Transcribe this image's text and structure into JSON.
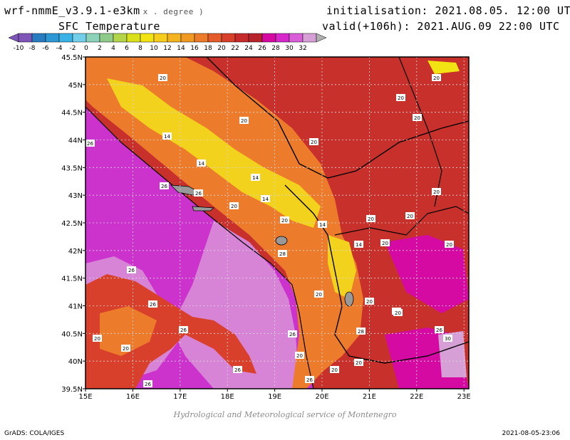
{
  "header": {
    "model": "wrf-nmmE_v3.9.1-e3km",
    "units": "x . degree )",
    "variable": "SFC Temperature",
    "init": "initialisation: 2021.08.05. 12:00 UTC",
    "valid": "valid(+106h): 2021.AUG.09 22:00 UTC"
  },
  "legend": {
    "ticks": [
      "-10",
      "-8",
      "-6",
      "-4",
      "-2",
      "0",
      "2",
      "4",
      "6",
      "8",
      "10",
      "12",
      "14",
      "16",
      "18",
      "20",
      "22",
      "24",
      "26",
      "28",
      "30",
      "32"
    ],
    "colors": [
      "#7e56b8",
      "#2a7cc1",
      "#2e98d4",
      "#39b2e6",
      "#73cfe9",
      "#8bd2b9",
      "#8fca8b",
      "#b4d54a",
      "#d9e11c",
      "#f2e412",
      "#f6cc1d",
      "#f4b41f",
      "#f09a24",
      "#ec7c2b",
      "#e45c2b",
      "#d8402c",
      "#c72a2b",
      "#b8242b",
      "#d40aa2",
      "#d628cb",
      "#d95fd8",
      "#d6a0d6"
    ]
  },
  "map": {
    "lat_labels": [
      "45.5N",
      "45N",
      "44.5N",
      "44N",
      "43.5N",
      "43N",
      "42.5N",
      "42N",
      "41.5N",
      "41N",
      "40.5N",
      "40N",
      "39.5N"
    ],
    "lon_labels": [
      "15E",
      "16E",
      "17E",
      "18E",
      "19E",
      "20E",
      "21E",
      "22E",
      "23E"
    ],
    "contour_labels": [
      "20",
      "20",
      "20",
      "20",
      "20",
      "20",
      "14",
      "14",
      "14",
      "14",
      "14",
      "26",
      "26",
      "26",
      "26",
      "28",
      "20",
      "20",
      "20",
      "20",
      "20",
      "20",
      "20",
      "20",
      "14",
      "20",
      "28",
      "26",
      "26",
      "20",
      "20",
      "26",
      "26",
      "26",
      "26",
      "26",
      "20",
      "20",
      "20",
      "20",
      "20",
      "30"
    ]
  },
  "footer": {
    "credit": "Hydrological and Meteorological service of Montenegro",
    "software": "GrADS: COLA/IGES",
    "timestamp": "2021-08-05-23:06"
  },
  "colors": {
    "sea": "#cc33cc",
    "sea_light": "#d884d6",
    "warm_land": "#c8302c",
    "orange": "#ec7c2b",
    "yellow": "#f2d21c"
  }
}
